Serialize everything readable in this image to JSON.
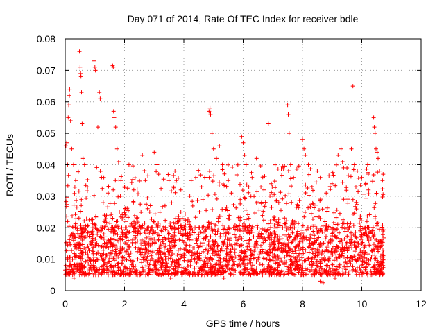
{
  "chart_data": {
    "type": "scatter",
    "title": "Day 071 of 2014, Rate Of TEC Index for receiver bdle",
    "xlabel": "GPS time / hours",
    "ylabel": "ROTI / TECUs",
    "xlim": [
      0,
      12
    ],
    "ylim": [
      0,
      0.08
    ],
    "xticks": [
      0,
      2,
      4,
      6,
      8,
      10,
      12
    ],
    "yticks": [
      0,
      0.01,
      0.02,
      0.03,
      0.04,
      0.05,
      0.06,
      0.07,
      0.08
    ],
    "xtick_labels": [
      "0",
      "2",
      "4",
      "6",
      "8",
      "10",
      "12"
    ],
    "ytick_labels": [
      "0",
      "0.01",
      "0.02",
      "0.03",
      "0.04",
      "0.05",
      "0.06",
      "0.07",
      "0.08"
    ],
    "grid": true,
    "marker": "+",
    "color": "#ff0000",
    "series": [
      {
        "name": "ROTI",
        "x_range": [
          0,
          10.75
        ],
        "typical_range": [
          0.005,
          0.02
        ],
        "points": [
          [
            0.02,
            0.046
          ],
          [
            0.05,
            0.047
          ],
          [
            0.08,
            0.04
          ],
          [
            0.1,
            0.055
          ],
          [
            0.12,
            0.059
          ],
          [
            0.14,
            0.062
          ],
          [
            0.15,
            0.064
          ],
          [
            0.18,
            0.054
          ],
          [
            0.22,
            0.045
          ],
          [
            0.28,
            0.04
          ],
          [
            0.35,
            0.035
          ],
          [
            0.48,
            0.076
          ],
          [
            0.5,
            0.071
          ],
          [
            0.52,
            0.069
          ],
          [
            0.53,
            0.068
          ],
          [
            0.55,
            0.063
          ],
          [
            0.57,
            0.053
          ],
          [
            0.6,
            0.042
          ],
          [
            0.65,
            0.04
          ],
          [
            0.75,
            0.033
          ],
          [
            0.97,
            0.073
          ],
          [
            1.0,
            0.071
          ],
          [
            1.02,
            0.07
          ],
          [
            1.1,
            0.052
          ],
          [
            1.15,
            0.063
          ],
          [
            1.18,
            0.061
          ],
          [
            1.2,
            0.038
          ],
          [
            1.3,
            0.036
          ],
          [
            1.45,
            0.031
          ],
          [
            1.6,
            0.0715
          ],
          [
            1.62,
            0.071
          ],
          [
            1.63,
            0.057
          ],
          [
            1.65,
            0.055
          ],
          [
            1.7,
            0.052
          ],
          [
            1.75,
            0.045
          ],
          [
            1.8,
            0.041
          ],
          [
            1.88,
            0.035
          ],
          [
            2.0,
            0.033
          ],
          [
            2.15,
            0.04
          ],
          [
            2.3,
            0.028
          ],
          [
            2.6,
            0.043
          ],
          [
            2.7,
            0.035
          ],
          [
            3.0,
            0.044
          ],
          [
            3.1,
            0.04
          ],
          [
            3.15,
            0.037
          ],
          [
            3.5,
            0.035
          ],
          [
            3.65,
            0.033
          ],
          [
            3.7,
            0.038
          ],
          [
            3.75,
            0.035
          ],
          [
            3.9,
            0.032
          ],
          [
            4.2,
            0.03
          ],
          [
            4.4,
            0.036
          ],
          [
            4.6,
            0.033
          ],
          [
            4.85,
            0.057
          ],
          [
            4.88,
            0.058
          ],
          [
            4.9,
            0.056
          ],
          [
            4.95,
            0.05
          ],
          [
            5.0,
            0.045
          ],
          [
            5.1,
            0.042
          ],
          [
            5.2,
            0.046
          ],
          [
            5.3,
            0.04
          ],
          [
            5.5,
            0.035
          ],
          [
            5.6,
            0.031
          ],
          [
            5.95,
            0.049
          ],
          [
            6.0,
            0.047
          ],
          [
            6.05,
            0.043
          ],
          [
            6.1,
            0.04
          ],
          [
            6.3,
            0.036
          ],
          [
            6.45,
            0.042
          ],
          [
            6.6,
            0.033
          ],
          [
            6.7,
            0.032
          ],
          [
            6.85,
            0.053
          ],
          [
            7.0,
            0.03
          ],
          [
            7.2,
            0.028
          ],
          [
            7.5,
            0.059
          ],
          [
            7.52,
            0.056
          ],
          [
            7.55,
            0.05
          ],
          [
            7.6,
            0.04
          ],
          [
            7.7,
            0.036
          ],
          [
            8.0,
            0.048
          ],
          [
            8.05,
            0.045
          ],
          [
            8.1,
            0.043
          ],
          [
            8.2,
            0.04
          ],
          [
            8.5,
            0.038
          ],
          [
            8.6,
            0.036
          ],
          [
            8.8,
            0.031
          ],
          [
            9.0,
            0.034
          ],
          [
            9.2,
            0.043
          ],
          [
            9.3,
            0.045
          ],
          [
            9.35,
            0.041
          ],
          [
            9.5,
            0.039
          ],
          [
            9.65,
            0.045
          ],
          [
            9.7,
            0.065
          ],
          [
            9.75,
            0.04
          ],
          [
            9.85,
            0.038
          ],
          [
            10.0,
            0.036
          ],
          [
            10.2,
            0.04
          ],
          [
            10.4,
            0.055
          ],
          [
            10.42,
            0.052
          ],
          [
            10.45,
            0.05
          ],
          [
            10.48,
            0.045
          ],
          [
            10.52,
            0.044
          ],
          [
            10.55,
            0.042
          ],
          [
            10.6,
            0.038
          ],
          [
            10.7,
            0.035
          ],
          [
            10.72,
            0.037
          ],
          [
            0.3,
            0.004
          ],
          [
            1.45,
            0.005
          ],
          [
            3.55,
            0.004
          ],
          [
            4.7,
            0.005
          ],
          [
            5.35,
            0.004
          ],
          [
            7.25,
            0.005
          ],
          [
            8.6,
            0.003
          ],
          [
            8.7,
            0.0025
          ],
          [
            9.1,
            0.004
          ],
          [
            10.2,
            0.005
          ],
          [
            10.6,
            0.006
          ]
        ]
      }
    ]
  }
}
